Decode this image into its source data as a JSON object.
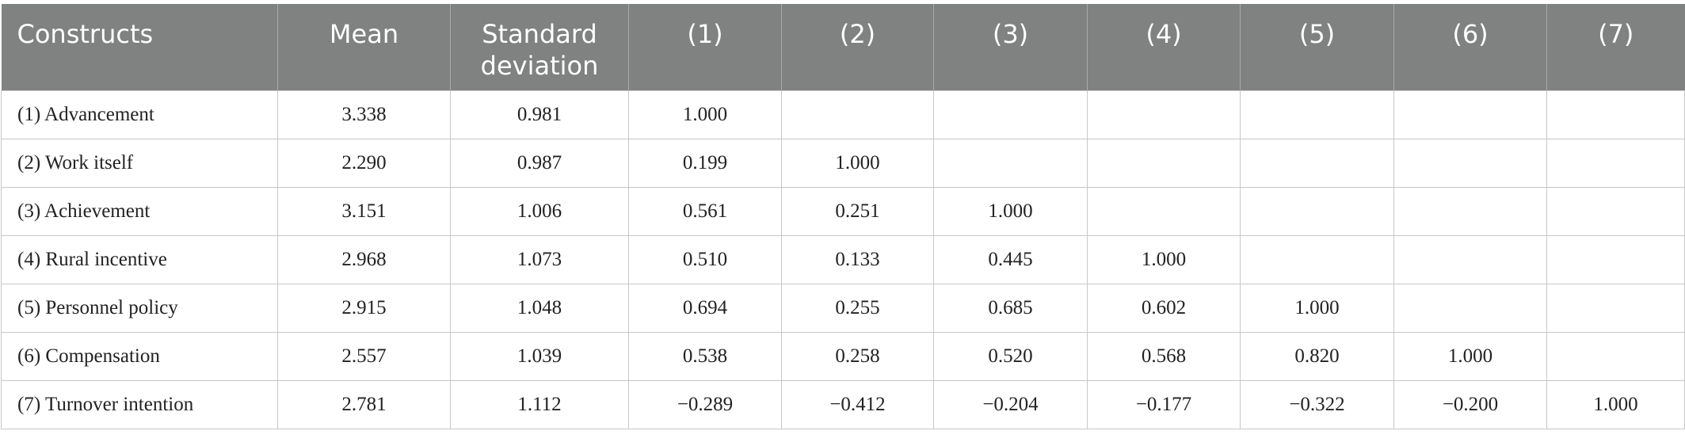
{
  "table": {
    "header": [
      "Constructs",
      "Mean",
      "Standard deviation",
      "(1)",
      "(2)",
      "(3)",
      "(4)",
      "(5)",
      "(6)",
      "(7)"
    ],
    "rows": [
      [
        "(1) Advancement",
        "3.338",
        "0.981",
        "1.000"
      ],
      [
        "(2) Work itself",
        "2.290",
        "0.987",
        "0.199",
        "1.000"
      ],
      [
        "(3) Achievement",
        "3.151",
        "1.006",
        "0.561",
        "0.251",
        "1.000"
      ],
      [
        "(4) Rural incentive",
        "2.968",
        "1.073",
        "0.510",
        "0.133",
        "0.445",
        "1.000"
      ],
      [
        "(5) Personnel policy",
        "2.915",
        "1.048",
        "0.694",
        "0.255",
        "0.685",
        "0.602",
        "1.000"
      ],
      [
        "(6) Compensation",
        "2.557",
        "1.039",
        "0.538",
        "0.258",
        "0.520",
        "0.568",
        "0.820",
        "1.000"
      ],
      [
        "(7) Turnover intention",
        "2.781",
        "1.112",
        "−0.289",
        "−0.412",
        "−0.204",
        "−0.177",
        "−0.322",
        "−0.200",
        "1.000"
      ]
    ]
  }
}
